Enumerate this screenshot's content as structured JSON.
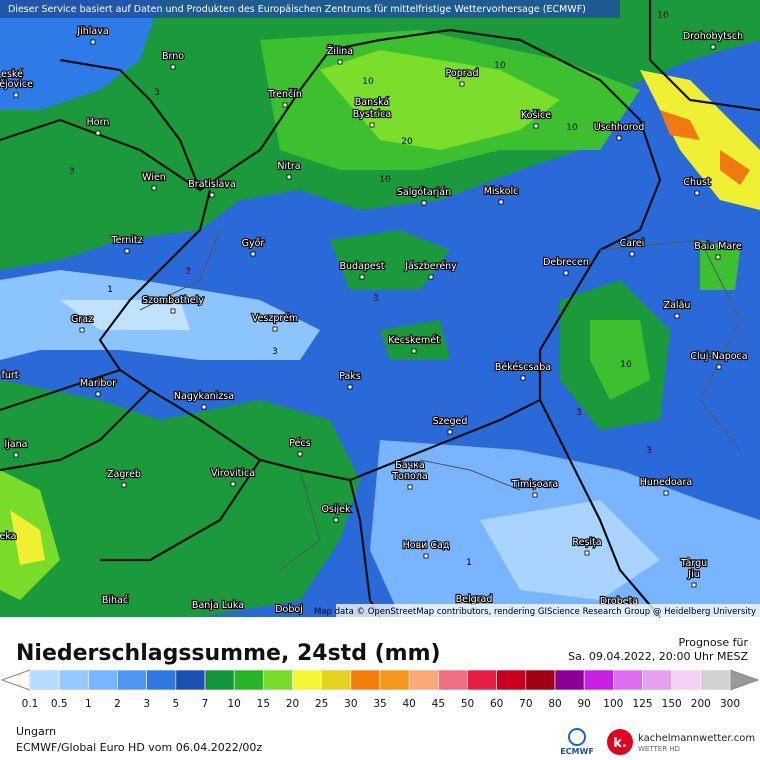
{
  "header": {
    "notice": "Dieser Service basiert auf Daten und Produkten des Europäischen Zentrums für mittelfristige Wettervorhersage (ECMWF)",
    "attribution": "Map data © OpenStreetMap contributors, rendering GIScience Research Group @ Heidelberg University"
  },
  "map": {
    "cities": [
      "Jihlava",
      "Brno",
      "Žilina",
      "Poprad",
      "Drohobytsch",
      "eské",
      "ějovice",
      "Trenčín",
      "Banská",
      "Bystrica",
      "Horn",
      "Košice",
      "Uschhorod",
      "Nitra",
      "Wien",
      "Bratislava",
      "Salgótarján",
      "Miskolc",
      "Chust",
      "Ternitz",
      "Győr",
      "Carei",
      "Baia Mare",
      "Budapest",
      "Jászberény",
      "Debrecen",
      "Szombathely",
      "Zalău",
      "Graz",
      "Veszprém",
      "Kecskemét",
      "Cluj-Napoca",
      "furt",
      "Maribor",
      "Paks",
      "Békéscsaba",
      "Nagykanizsa",
      "Szeged",
      "ljana",
      "Pécs",
      "Zagreb",
      "Virovitica",
      "Бачка",
      "Топола",
      "Timișoara",
      "Hunedoara",
      "Osijek",
      "eka",
      "Нови Сад",
      "Reșița",
      "Târgu",
      "Jiu",
      "Bihać",
      "Banja Luka",
      "Doboj",
      "Belgrad",
      "Drobeta"
    ],
    "contour_labels": [
      10,
      10,
      10,
      10,
      10,
      10,
      20,
      3,
      3,
      3,
      3,
      3,
      3,
      3,
      1,
      1
    ]
  },
  "legend": {
    "title": "Niederschlagssumme, 24std (mm)",
    "forecast_label": "Prognose für",
    "forecast_time": "Sa. 09.04.2022, 20:00 Uhr MESZ",
    "ticks": [
      0.1,
      0.5,
      1,
      2,
      3,
      5,
      7,
      10,
      15,
      20,
      25,
      30,
      35,
      40,
      45,
      50,
      60,
      70,
      80,
      90,
      100,
      125,
      150,
      200,
      300
    ],
    "colors": [
      "#b4dcff",
      "#96c8ff",
      "#78b4ff",
      "#5096f5",
      "#2e78e6",
      "#1e50b4",
      "#14963c",
      "#28b428",
      "#78dc28",
      "#f5f532",
      "#e6d21e",
      "#f57d0a",
      "#f5961e",
      "#faaa78",
      "#f06e82",
      "#e61e46",
      "#c8001e",
      "#a00014",
      "#8c0096",
      "#c81ee6",
      "#dc6ef0",
      "#e6a0f0",
      "#f5d2f5",
      "#d2d2d2"
    ]
  },
  "footer": {
    "region": "Ungarn",
    "model": "ECMWF/Global Euro HD vom  06.04.2022/00z",
    "ecmwf": "ECMWF",
    "site": "kachelmannwetter.com",
    "site_sub": "WETTER HD",
    "logo_letter": "k."
  }
}
